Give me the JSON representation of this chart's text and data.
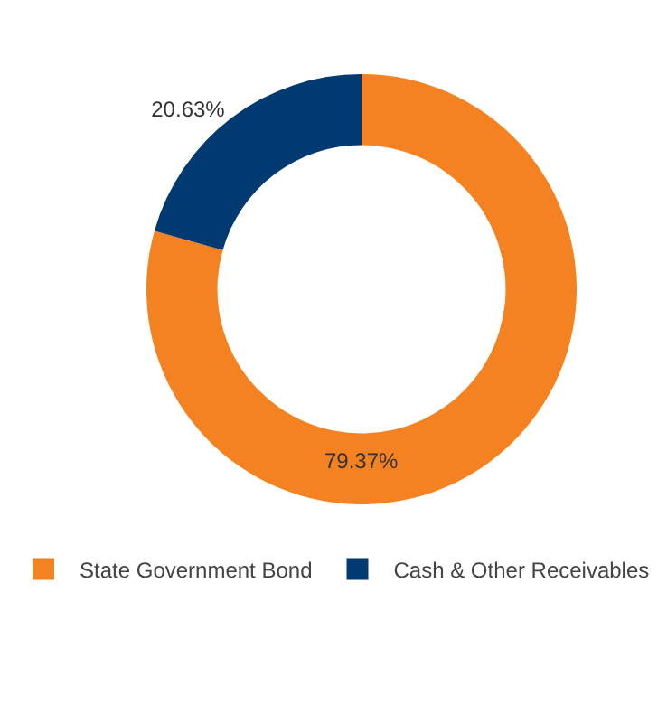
{
  "chart_data": {
    "type": "donut",
    "categories": [
      "State Government Bond",
      "Cash & Other Receivables"
    ],
    "values": [
      79.37,
      20.63
    ],
    "colors": [
      "#f58220",
      "#003a70"
    ],
    "value_labels": [
      "79.37%",
      "20.63%"
    ],
    "legend": "bottom"
  }
}
